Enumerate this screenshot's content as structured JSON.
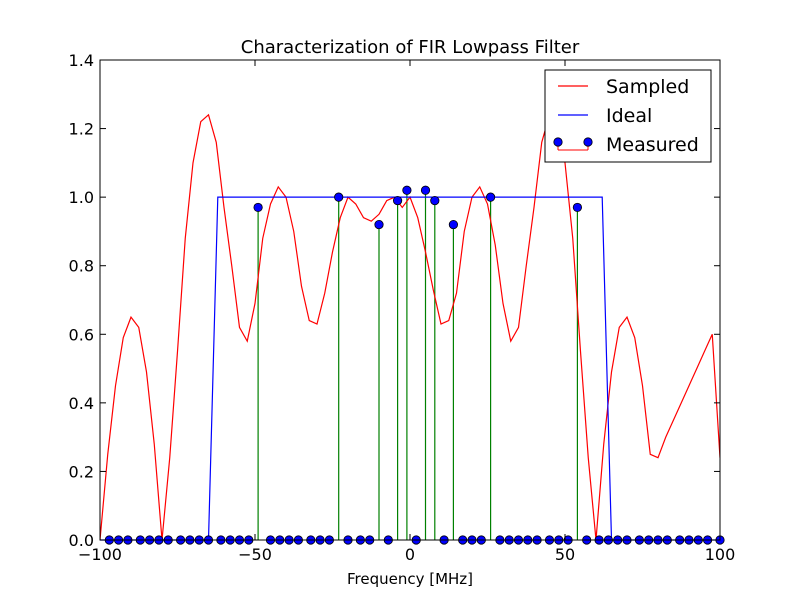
{
  "chart_data": {
    "type": "line",
    "title": "Characterization of FIR Lowpass Filter",
    "xlabel": "Frequency [MHz]",
    "ylabel": "",
    "xlim": [
      -100,
      100
    ],
    "ylim": [
      0.0,
      1.4
    ],
    "xticks": [
      -100,
      -50,
      0,
      50,
      100
    ],
    "xtick_labels": [
      "−100",
      "−50",
      "0",
      "50",
      "100"
    ],
    "yticks": [
      0.0,
      0.2,
      0.4,
      0.6,
      0.8,
      1.0,
      1.2,
      1.4
    ],
    "ytick_labels": [
      "0.0",
      "0.2",
      "0.4",
      "0.6",
      "0.8",
      "1.0",
      "1.2",
      "1.4"
    ],
    "grid": false,
    "legend_position": "top-right",
    "series": [
      {
        "name": "Sampled",
        "kind": "line",
        "color": "#ff0000",
        "x": [
          -100,
          -97.5,
          -95,
          -92.5,
          -90,
          -87.5,
          -85,
          -82.5,
          -80,
          -77.5,
          -75,
          -72.5,
          -70,
          -67.5,
          -65,
          -62.5,
          -60,
          -57.5,
          -55,
          -52.5,
          -50,
          -47.5,
          -45,
          -42.5,
          -40,
          -37.5,
          -35,
          -32.5,
          -30,
          -27.5,
          -25,
          -22.5,
          -20,
          -17.5,
          -15,
          -12.5,
          -10,
          -7.5,
          -5,
          -2.5,
          0,
          2.5,
          5,
          7.5,
          10,
          12.5,
          15,
          17.5,
          20,
          22.5,
          25,
          27.5,
          30,
          32.5,
          35,
          37.5,
          40,
          42.5,
          45,
          47.5,
          50,
          52.5,
          55,
          57.5,
          60,
          62.5,
          65,
          67.5,
          70,
          72.5,
          75,
          77.5,
          80,
          82.5,
          85,
          87.5,
          90,
          92.5,
          95,
          97.5,
          100
        ],
        "y": [
          0.0,
          0.25,
          0.45,
          0.59,
          0.65,
          0.62,
          0.49,
          0.28,
          0.0,
          0.24,
          0.55,
          0.88,
          1.1,
          1.22,
          1.24,
          1.16,
          0.97,
          0.8,
          0.62,
          0.58,
          0.69,
          0.88,
          0.98,
          1.03,
          1.0,
          0.9,
          0.74,
          0.64,
          0.63,
          0.72,
          0.84,
          0.94,
          1.0,
          0.98,
          0.94,
          0.93,
          0.95,
          0.99,
          1.0,
          0.97,
          1.0,
          0.94,
          0.84,
          0.73,
          0.63,
          0.64,
          0.72,
          0.9,
          1.0,
          1.03,
          0.98,
          0.86,
          0.69,
          0.58,
          0.62,
          0.8,
          0.97,
          1.16,
          1.24,
          1.22,
          1.1,
          0.88,
          0.55,
          0.24,
          0.0,
          0.28,
          0.49,
          0.62,
          0.65,
          0.59,
          0.45,
          0.25,
          0.24,
          0.3,
          0.35,
          0.4,
          0.45,
          0.5,
          0.55,
          0.6,
          0.24
        ]
      },
      {
        "name": "Ideal",
        "kind": "line",
        "color": "#0000ff",
        "x": [
          -100,
          -65,
          -62,
          62,
          65,
          100
        ],
        "y": [
          0,
          0,
          1,
          1,
          0,
          0
        ]
      },
      {
        "name": "Measured",
        "kind": "stem",
        "marker_color": "#0000ff",
        "stem_color": "#008000",
        "x": [
          -97,
          -94,
          -91,
          -87,
          -84,
          -81,
          -78,
          -74,
          -71,
          -68,
          -65,
          -61,
          -58,
          -55,
          -52,
          -49,
          -45,
          -42,
          -39,
          -36,
          -32,
          -29,
          -26,
          -23,
          -20,
          -16,
          -13,
          -10,
          -7,
          -4,
          -1,
          2,
          5,
          8,
          11,
          14,
          17,
          20,
          23,
          26,
          29,
          32,
          35,
          38,
          41,
          45,
          48,
          51,
          54,
          57,
          61,
          64,
          67,
          70,
          74,
          77,
          80,
          83,
          87,
          90,
          93,
          96,
          100
        ],
        "y": [
          0,
          0,
          0,
          0,
          0,
          0,
          0,
          0,
          0,
          0,
          0,
          0,
          0,
          0,
          0,
          0.97,
          0,
          0,
          0,
          0,
          0,
          0,
          0,
          1.0,
          0,
          0,
          0,
          0.92,
          0,
          0.99,
          1.02,
          0,
          1.02,
          0.99,
          0,
          0.92,
          0,
          0,
          0,
          1.0,
          0,
          0,
          0,
          0,
          0,
          0,
          0,
          0,
          0.97,
          0,
          0,
          0,
          0,
          0,
          0,
          0,
          0,
          0,
          0,
          0,
          0,
          0,
          0
        ]
      }
    ]
  }
}
